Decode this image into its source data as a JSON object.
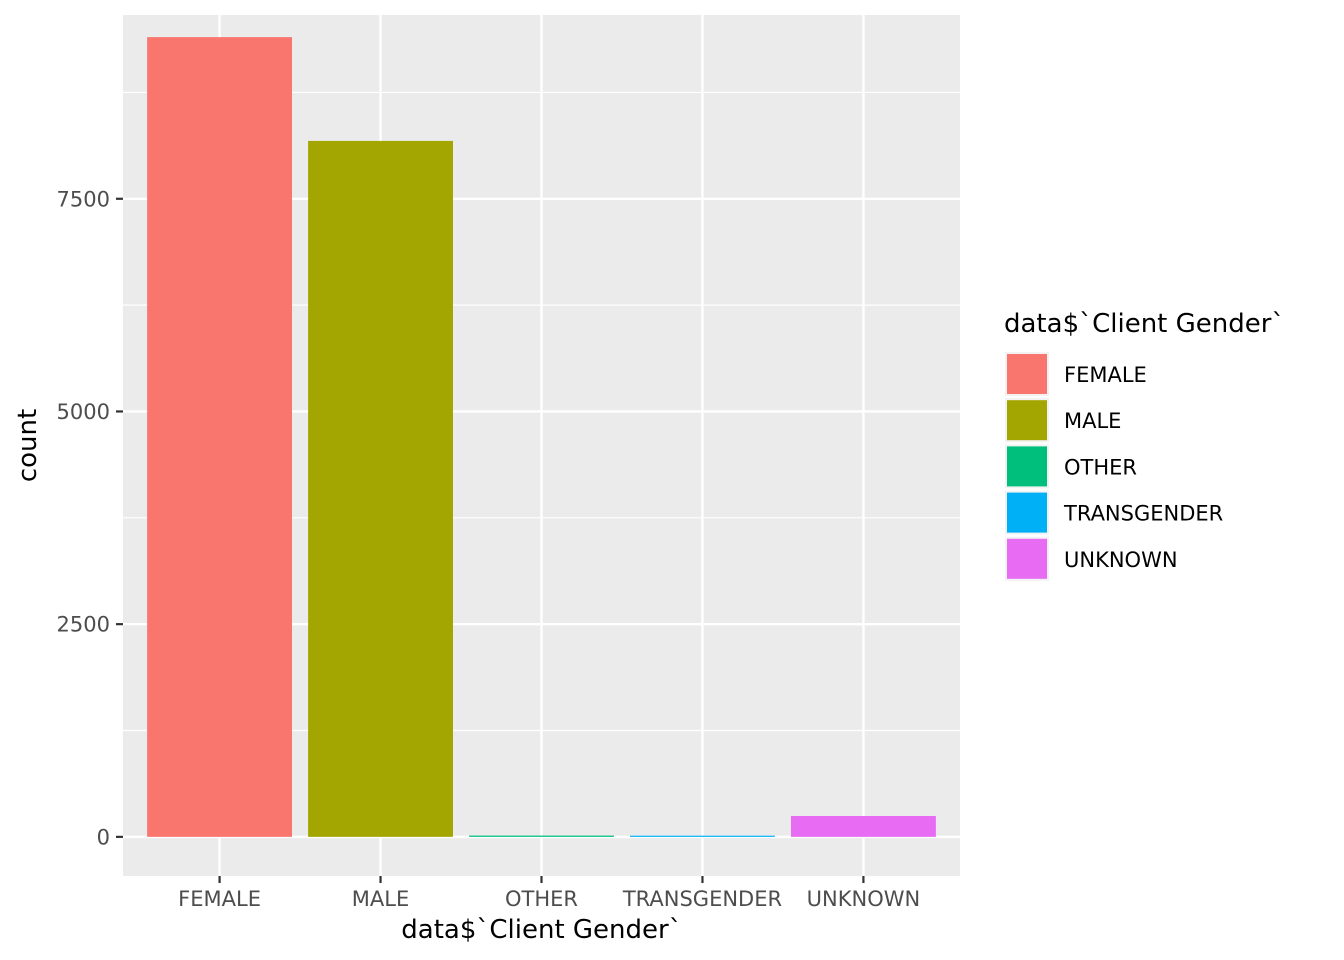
{
  "chart_data": {
    "type": "bar",
    "categories": [
      "FEMALE",
      "MALE",
      "OTHER",
      "TRANSGENDER",
      "UNKNOWN"
    ],
    "values": [
      9400,
      8180,
      15,
      10,
      245
    ],
    "colors": [
      "#F8766D",
      "#A3A500",
      "#00BF7D",
      "#00B0F6",
      "#E76BF3"
    ],
    "xlabel": "data$`Client Gender`",
    "ylabel": "count",
    "ylim": [
      -460,
      9660
    ],
    "yticks": [
      0,
      2500,
      5000,
      7500
    ],
    "grid": true,
    "legend": {
      "title": "data$`Client Gender`",
      "placement": "right",
      "entries": [
        "FEMALE",
        "MALE",
        "OTHER",
        "TRANSGENDER",
        "UNKNOWN"
      ]
    }
  }
}
